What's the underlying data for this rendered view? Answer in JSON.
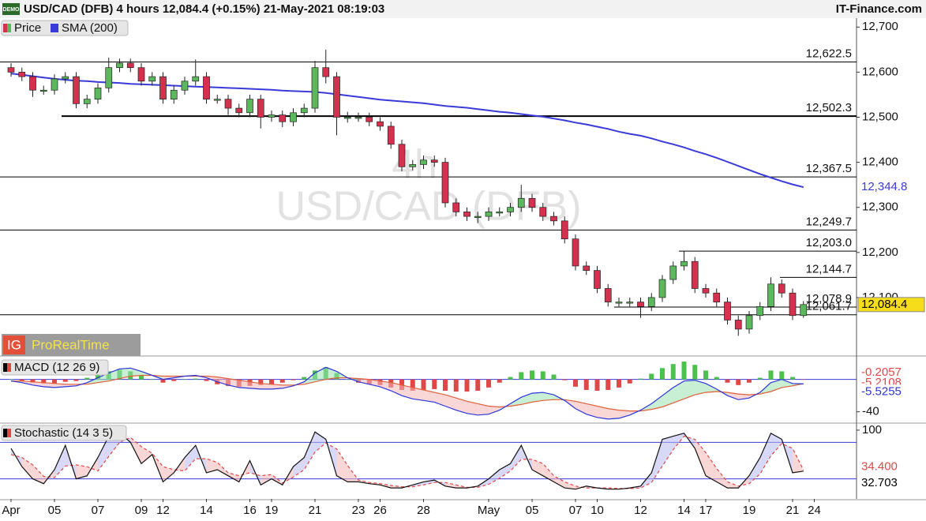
{
  "chart_data": [
    {
      "type": "candlestick",
      "title": "USD/CAD (DFB) 4 hours 12,084.4 (+0.15%) 21-May-2021 08:19:03",
      "badge": "DEMO",
      "source": "IT-Finance.com",
      "watermark": [
        "4h",
        "USD/CAD (DFB)"
      ],
      "brand": {
        "logo": "IG",
        "name": "ProRealTime"
      },
      "categories": [
        "Apr",
        null,
        null,
        null,
        "05",
        null,
        null,
        null,
        "07",
        null,
        null,
        null,
        "09",
        null,
        "12",
        null,
        null,
        null,
        "14",
        null,
        null,
        null,
        "16",
        null,
        "19",
        null,
        null,
        null,
        "21",
        null,
        null,
        null,
        "23",
        null,
        "26",
        null,
        null,
        null,
        "28",
        null,
        null,
        null,
        null,
        null,
        "May",
        null,
        null,
        null,
        "05",
        null,
        null,
        null,
        "07",
        null,
        "10",
        null,
        null,
        null,
        "12",
        null,
        null,
        null,
        "14",
        null,
        "17",
        null,
        null,
        null,
        "19",
        null,
        null,
        null,
        "21",
        null,
        "24",
        null
      ],
      "series": [
        {
          "name": "Price",
          "up_color": "#5cb85c",
          "down_color": "#d6304f",
          "last_label": "12,084.4",
          "open": [
            12610,
            12600,
            12590,
            12560,
            12560,
            12585,
            12590,
            12530,
            12540,
            12565,
            12610,
            12620,
            12610,
            12580,
            12590,
            12540,
            12560,
            12580,
            12590,
            12540,
            12540,
            12520,
            12510,
            12540,
            12500,
            12505,
            12490,
            12510,
            12520,
            12610,
            12590,
            12500,
            12500,
            12500,
            12490,
            12480,
            12440,
            12390,
            12395,
            12405,
            12400,
            12310,
            12290,
            12280,
            12280,
            12290,
            12290,
            12300,
            12320,
            12300,
            12280,
            12270,
            12230,
            12170,
            12160,
            12120,
            12090,
            12090,
            12090,
            12080,
            12100,
            12140,
            12170,
            12180,
            12120,
            12110,
            12090,
            12050,
            12030,
            12060,
            12080,
            12130,
            12110,
            12060,
            null,
            null
          ],
          "high": [
            12620,
            12610,
            12600,
            12570,
            12595,
            12600,
            12600,
            12550,
            12575,
            12632,
            12630,
            12630,
            12620,
            12600,
            12600,
            12570,
            12590,
            12628,
            12600,
            12550,
            12550,
            12530,
            12550,
            12550,
            12515,
            12515,
            12520,
            12530,
            12625,
            12650,
            12600,
            12512,
            12510,
            12510,
            12500,
            12490,
            12450,
            12405,
            12415,
            12415,
            12410,
            12320,
            12300,
            12290,
            12300,
            12300,
            12310,
            12350,
            12330,
            12310,
            12290,
            12280,
            12240,
            12180,
            12170,
            12130,
            12100,
            12100,
            12100,
            12110,
            12150,
            12180,
            12203,
            12190,
            12130,
            12120,
            12100,
            12060,
            12070,
            12090,
            12145,
            12140,
            12120,
            12092,
            null,
            null
          ],
          "low": [
            12590,
            12580,
            12545,
            12550,
            12550,
            12575,
            12520,
            12520,
            12530,
            12555,
            12600,
            12600,
            12570,
            12570,
            12530,
            12530,
            12550,
            12570,
            12530,
            12530,
            12505,
            12500,
            12500,
            12475,
            12490,
            12478,
            12480,
            12500,
            12510,
            12575,
            12460,
            12488,
            12490,
            12480,
            12470,
            12430,
            12380,
            12382,
            12385,
            12390,
            12300,
            12280,
            12270,
            12265,
            12270,
            12280,
            12280,
            12290,
            12290,
            12270,
            12260,
            12220,
            12160,
            12150,
            12110,
            12080,
            12080,
            12080,
            12055,
            12070,
            12090,
            12130,
            12160,
            12110,
            12100,
            12080,
            12040,
            12015,
            12020,
            12050,
            12070,
            12100,
            12050,
            12055,
            null,
            null
          ],
          "close": [
            12600,
            12590,
            12560,
            12560,
            12585,
            12590,
            12530,
            12540,
            12565,
            12610,
            12620,
            12610,
            12580,
            12590,
            12540,
            12560,
            12580,
            12590,
            12540,
            12540,
            12520,
            12510,
            12540,
            12500,
            12505,
            12490,
            12510,
            12520,
            12610,
            12590,
            12500,
            12500,
            12500,
            12490,
            12480,
            12440,
            12390,
            12395,
            12405,
            12400,
            12310,
            12290,
            12280,
            12280,
            12290,
            12290,
            12300,
            12320,
            12300,
            12280,
            12270,
            12230,
            12170,
            12160,
            12120,
            12090,
            12090,
            12090,
            12080,
            12100,
            12140,
            12170,
            12180,
            12120,
            12110,
            12090,
            12050,
            12030,
            12060,
            12080,
            12130,
            12110,
            12060,
            12084.4,
            null,
            null
          ]
        },
        {
          "name": "SMA (200)",
          "color": "#3a3ad8",
          "last_label": "12,344.8",
          "values": [
            12597,
            12594,
            12591,
            12588,
            12585,
            12583,
            12581,
            12580,
            12578,
            12577,
            12576,
            12574,
            12573,
            12572,
            12571,
            12570,
            12569,
            12568,
            12567,
            12566,
            12565,
            12564,
            12563,
            12562,
            12561,
            12559,
            12558,
            12557,
            12556,
            12554,
            12551,
            12548,
            12545,
            12542,
            12539,
            12537,
            12535,
            12533,
            12531,
            12528,
            12525,
            12523,
            12521,
            12518,
            12515,
            12512,
            12510,
            12507,
            12504,
            12501,
            12497,
            12493,
            12488,
            12484,
            12479,
            12474,
            12468,
            12463,
            12459,
            12453,
            12446,
            12440,
            12433,
            12425,
            12418,
            12410,
            12401,
            12392,
            12383,
            12374,
            12366,
            12358,
            12351,
            12344.8,
            null,
            null
          ]
        }
      ],
      "levels": [
        {
          "value": 12622.5,
          "label": "12,622.5"
        },
        {
          "value": 12502.3,
          "label": "12,502.3"
        },
        {
          "value": 12367.5,
          "label": "12,367.5"
        },
        {
          "value": 12249.7,
          "label": "12,249.7"
        },
        {
          "value": 12203.0,
          "label": "12,203.0"
        },
        {
          "value": 12144.7,
          "label": "12,144.7"
        },
        {
          "value": 12078.9,
          "label": "12,078.9"
        },
        {
          "value": 12061.7,
          "label": "12,061.7"
        }
      ],
      "ylim": [
        11972,
        12718
      ],
      "yticks": [
        {
          "value": 12100,
          "label": "12,100"
        },
        {
          "value": 12200,
          "label": "12,200"
        },
        {
          "value": 12300,
          "label": "12,300"
        },
        {
          "value": 12400,
          "label": "12,400"
        },
        {
          "value": 12500,
          "label": "12,500"
        },
        {
          "value": 12600,
          "label": "12,600"
        },
        {
          "value": 12700,
          "label": "12,700"
        }
      ]
    },
    {
      "type": "macd",
      "title": "MACD (12 26 9)",
      "macd": {
        "color": "#2b35d8",
        "last_label": "-5.5255",
        "values": [
          -2,
          -4,
          -7,
          -9,
          -10,
          -9,
          -8,
          -4,
          2,
          8,
          13,
          14,
          10,
          5,
          0,
          2,
          4,
          5,
          2,
          -3,
          -7,
          -10,
          -11,
          -12,
          -12,
          -11,
          -8,
          -3,
          8,
          15,
          10,
          2,
          -3,
          -6,
          -9,
          -14,
          -20,
          -24,
          -26,
          -28,
          -33,
          -38,
          -42,
          -44,
          -43,
          -38,
          -30,
          -22,
          -17,
          -16,
          -19,
          -26,
          -36,
          -43,
          -47,
          -49,
          -48,
          -44,
          -38,
          -30,
          -20,
          -10,
          -2,
          -1,
          -5,
          -12,
          -20,
          -25,
          -23,
          -16,
          -4,
          0,
          -5,
          -5.5255,
          null,
          null
        ]
      },
      "signal": {
        "color": "#e0603a",
        "last_label": "-5.2108",
        "values": [
          -2,
          -2,
          -3,
          -4,
          -5,
          -6,
          -6,
          -6,
          -4,
          -2,
          1,
          4,
          5,
          5,
          4,
          4,
          4,
          4,
          4,
          3,
          1,
          -1,
          -3,
          -5,
          -6,
          -7,
          -7,
          -6,
          -3,
          0,
          2,
          2,
          1,
          0,
          -2,
          -4,
          -7,
          -10,
          -13,
          -16,
          -19,
          -23,
          -27,
          -30,
          -33,
          -34,
          -33,
          -31,
          -28,
          -26,
          -25,
          -25,
          -27,
          -30,
          -33,
          -36,
          -38,
          -39,
          -39,
          -37,
          -34,
          -29,
          -24,
          -19,
          -16,
          -15,
          -16,
          -18,
          -19,
          -18,
          -15,
          -10,
          -8,
          -5.2108,
          null,
          null
        ]
      },
      "histogram": {
        "up_color": "#4cc24c",
        "down_color": "#e04848",
        "last_label": "-0.2057",
        "values": [
          0,
          -2,
          -4,
          -5,
          -5,
          -3,
          -2,
          2,
          6,
          10,
          12,
          10,
          5,
          0,
          -4,
          -2,
          0,
          1,
          -2,
          -6,
          -8,
          -9,
          -8,
          -7,
          -6,
          -4,
          -1,
          3,
          11,
          15,
          8,
          0,
          -4,
          -6,
          -7,
          -10,
          -13,
          -14,
          -13,
          -12,
          -14,
          -15,
          -15,
          -14,
          -10,
          -4,
          3,
          9,
          11,
          10,
          6,
          -1,
          -9,
          -13,
          -14,
          -13,
          -10,
          -5,
          1,
          7,
          14,
          19,
          22,
          18,
          11,
          3,
          -4,
          -7,
          -4,
          2,
          11,
          10,
          3,
          -0.2057,
          null,
          null
        ]
      },
      "ylim": [
        -53,
        25
      ],
      "yticks": [
        -40
      ]
    },
    {
      "type": "stochastic",
      "title": "Stochastic (14 3 5)",
      "k": {
        "color": "#111111",
        "last_label": "32.703",
        "values": [
          70,
          40,
          20,
          12,
          35,
          75,
          20,
          25,
          55,
          90,
          95,
          80,
          45,
          60,
          15,
          30,
          55,
          75,
          30,
          35,
          25,
          15,
          50,
          10,
          20,
          10,
          40,
          55,
          97,
          85,
          25,
          15,
          15,
          12,
          10,
          5,
          5,
          10,
          15,
          18,
          8,
          5,
          5,
          8,
          20,
          35,
          45,
          75,
          35,
          25,
          15,
          5,
          3,
          8,
          5,
          3,
          3,
          5,
          8,
          30,
          85,
          90,
          95,
          70,
          25,
          15,
          5,
          5,
          25,
          55,
          95,
          85,
          30,
          32.703,
          null,
          null
        ]
      },
      "d": {
        "color": "#e04848",
        "last_label": "34.400",
        "values": [
          60,
          55,
          43,
          24,
          22,
          41,
          43,
          40,
          33,
          57,
          80,
          88,
          73,
          62,
          40,
          35,
          33,
          53,
          53,
          47,
          30,
          25,
          30,
          25,
          27,
          13,
          23,
          35,
          64,
          79,
          69,
          42,
          18,
          14,
          12,
          9,
          7,
          7,
          10,
          14,
          14,
          10,
          6,
          6,
          11,
          21,
          33,
          52,
          52,
          45,
          25,
          15,
          8,
          5,
          5,
          5,
          4,
          4,
          5,
          14,
          41,
          68,
          90,
          85,
          63,
          37,
          15,
          8,
          12,
          28,
          58,
          78,
          70,
          34.4,
          null,
          null
        ]
      },
      "bands": [
        80,
        20
      ],
      "ylim": [
        -13,
        109
      ],
      "yticks": [
        100
      ]
    }
  ]
}
